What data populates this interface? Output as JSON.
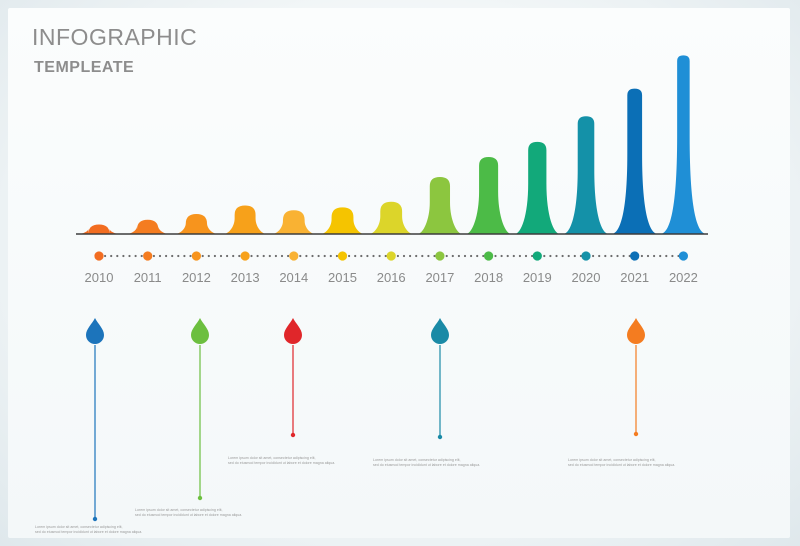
{
  "header": {
    "title": "INFOGRAPHIC",
    "subtitle": "TEMPLEATE"
  },
  "chart_data": {
    "type": "bar",
    "title": "INFOGRAPHIC",
    "subtitle": "TEMPLEATE",
    "xlabel": "",
    "ylabel": "",
    "categories": [
      "2010",
      "2011",
      "2012",
      "2013",
      "2014",
      "2015",
      "2016",
      "2017",
      "2018",
      "2019",
      "2020",
      "2021",
      "2022"
    ],
    "values": [
      10,
      15,
      21,
      30,
      25,
      28,
      34,
      60,
      81,
      97,
      124,
      153,
      188
    ],
    "ylim": [
      0,
      200
    ],
    "grid": false,
    "legend": "none",
    "colors": [
      "#f26d21",
      "#f47c20",
      "#f7941d",
      "#f7a11a",
      "#f9b233",
      "#f5c400",
      "#dcd52a",
      "#8cc63f",
      "#4cbb47",
      "#12a97a",
      "#1491a8",
      "#0b6fb6",
      "#1f8fd6"
    ]
  },
  "callouts": [
    {
      "color": "#1c74bb",
      "note_line1": "Lorem ipsum dolor sit amet, consectetur adipiscing elit,",
      "note_line2": "sed do eiusmod tempor incididunt ut labore et dolore magna aliqua."
    },
    {
      "color": "#6cbf3f",
      "note_line1": "Lorem ipsum dolor sit amet, consectetur adipiscing elit,",
      "note_line2": "sed do eiusmod tempor incididunt ut labore et dolore magna aliqua."
    },
    {
      "color": "#e0262a",
      "note_line1": "Lorem ipsum dolor sit amet, consectetur adipiscing elit,",
      "note_line2": "sed do eiusmod tempor incididunt ut labore et dolore magna aliqua."
    },
    {
      "color": "#1a8aa6",
      "note_line1": "Lorem ipsum dolor sit amet, consectetur adipiscing elit,",
      "note_line2": "sed do eiusmod tempor incididunt ut labore et dolore magna aliqua."
    },
    {
      "color": "#f47c20",
      "note_line1": "Lorem ipsum dolor sit amet, consectetur adipiscing elit,",
      "note_line2": "sed do eiusmod tempor incididunt ut labore et dolore magna aliqua."
    }
  ]
}
